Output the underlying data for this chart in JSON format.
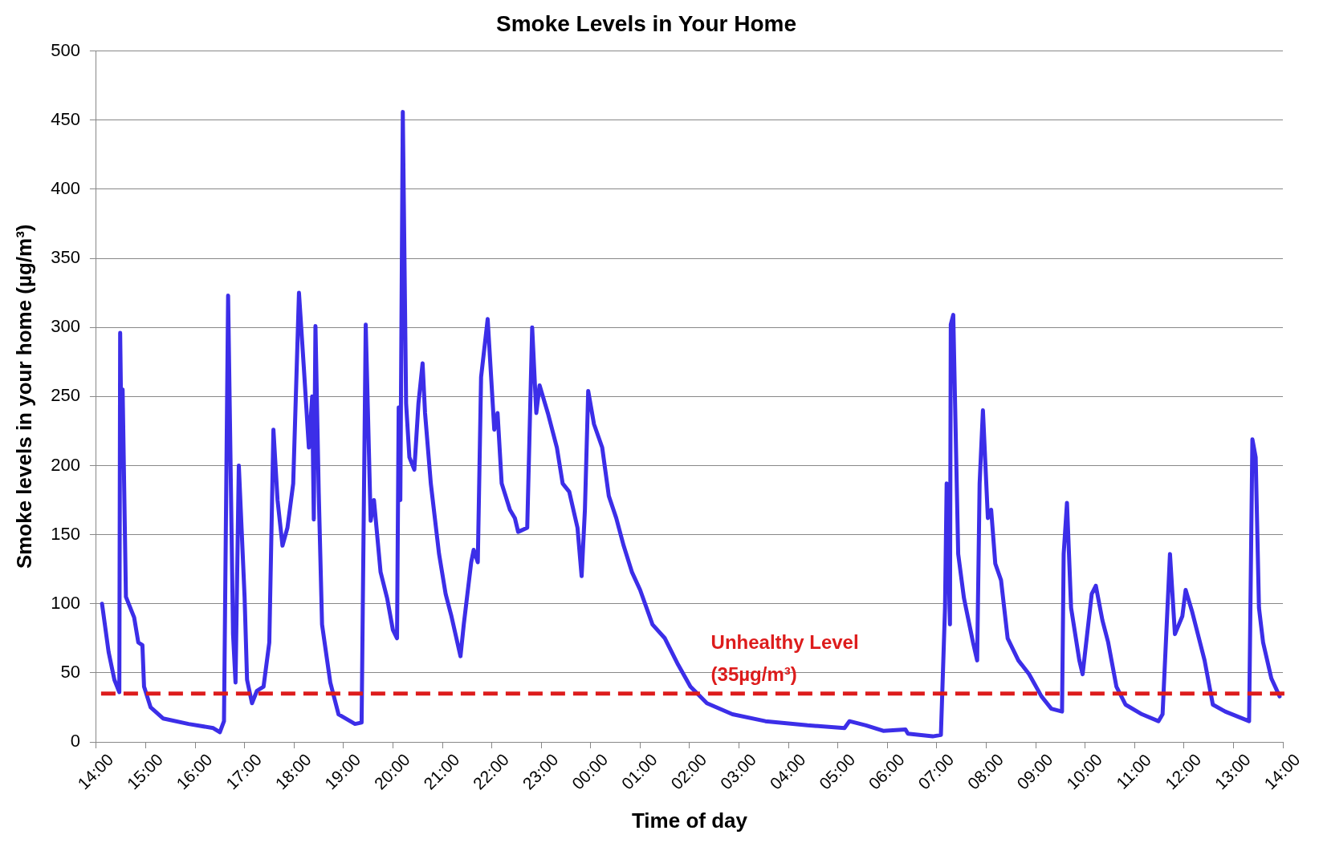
{
  "chart_data": {
    "type": "line",
    "title": "Smoke Levels in Your Home",
    "xlabel": "Time of day",
    "ylabel": "Smoke levels in your home (µg/m³)",
    "x": [
      "2000-01-01T14:07",
      "2000-01-01T14:15",
      "2000-01-01T14:22",
      "2000-01-01T14:28",
      "2000-01-01T14:29",
      "2000-01-01T14:30",
      "2000-01-01T14:32",
      "2000-01-01T14:36",
      "2000-01-01T14:46",
      "2000-01-01T14:51",
      "2000-01-01T14:56",
      "2000-01-01T14:58",
      "2000-01-01T15:06",
      "2000-01-01T15:21",
      "2000-01-01T15:52",
      "2000-01-01T16:22",
      "2000-01-01T16:30",
      "2000-01-01T16:35",
      "2000-01-01T16:40",
      "2000-01-01T16:46",
      "2000-01-01T16:49",
      "2000-01-01T16:53",
      "2000-01-01T17:00",
      "2000-01-01T17:03",
      "2000-01-01T17:09",
      "2000-01-01T17:15",
      "2000-01-01T17:23",
      "2000-01-01T17:30",
      "2000-01-01T17:35",
      "2000-01-01T17:40",
      "2000-01-01T17:46",
      "2000-01-01T17:52",
      "2000-01-01T17:59",
      "2000-01-01T18:06",
      "2000-01-01T18:12",
      "2000-01-01T18:18",
      "2000-01-01T18:22",
      "2000-01-01T18:24",
      "2000-01-01T18:26",
      "2000-01-01T18:30",
      "2000-01-01T18:34",
      "2000-01-01T18:44",
      "2000-01-01T18:54",
      "2000-01-01T19:14",
      "2000-01-01T19:22",
      "2000-01-01T19:27",
      "2000-01-01T19:33",
      "2000-01-01T19:37",
      "2000-01-01T19:45",
      "2000-01-01T19:53",
      "2000-01-01T20:00",
      "2000-01-01T20:05",
      "2000-01-01T20:07",
      "2000-01-01T20:09",
      "2000-01-01T20:12",
      "2000-01-01T20:16",
      "2000-01-01T20:20",
      "2000-01-01T20:26",
      "2000-01-01T20:31",
      "2000-01-01T20:36",
      "2000-01-01T20:39",
      "2000-01-01T20:46",
      "2000-01-01T20:56",
      "2000-01-01T21:04",
      "2000-01-01T21:11",
      "2000-01-01T21:22",
      "2000-01-01T21:26",
      "2000-01-01T21:35",
      "2000-01-01T21:38",
      "2000-01-01T21:43",
      "2000-01-01T21:47",
      "2000-01-01T21:55",
      "2000-01-01T22:03",
      "2000-01-01T22:07",
      "2000-01-01T22:12",
      "2000-01-01T22:22",
      "2000-01-01T22:28",
      "2000-01-01T22:32",
      "2000-01-01T22:43",
      "2000-01-01T22:49",
      "2000-01-01T22:54",
      "2000-01-01T22:58",
      "2000-01-01T23:08",
      "2000-01-01T23:19",
      "2000-01-01T23:26",
      "2000-01-01T23:34",
      "2000-01-01T23:44",
      "2000-01-01T23:49",
      "2000-01-01T23:53",
      "2000-01-01T23:57",
      "2000-01-02T00:04",
      "2000-01-02T00:14",
      "2000-01-02T00:22",
      "2000-01-02T00:31",
      "2000-01-02T00:40",
      "2000-01-02T00:50",
      "2000-01-02T01:00",
      "2000-01-02T01:15",
      "2000-01-02T01:30",
      "2000-01-02T01:46",
      "2000-01-02T02:01",
      "2000-01-02T02:21",
      "2000-01-02T02:52",
      "2000-01-02T03:32",
      "2000-01-02T04:23",
      "2000-01-02T05:08",
      "2000-01-02T05:14",
      "2000-01-02T05:34",
      "2000-01-02T05:55",
      "2000-01-02T06:22",
      "2000-01-02T06:25",
      "2000-01-02T06:55",
      "2000-01-02T07:05",
      "2000-01-02T07:10",
      "2000-01-02T07:12",
      "2000-01-02T07:16",
      "2000-01-02T07:17",
      "2000-01-02T07:20",
      "2000-01-02T07:22",
      "2000-01-02T07:26",
      "2000-01-02T07:33",
      "2000-01-02T07:44",
      "2000-01-02T07:49",
      "2000-01-02T07:52",
      "2000-01-02T07:56",
      "2000-01-02T08:02",
      "2000-01-02T08:06",
      "2000-01-02T08:11",
      "2000-01-02T08:18",
      "2000-01-02T08:26",
      "2000-01-02T08:39",
      "2000-01-02T08:52",
      "2000-01-02T09:07",
      "2000-01-02T09:19",
      "2000-01-02T09:32",
      "2000-01-02T09:34",
      "2000-01-02T09:38",
      "2000-01-02T09:43",
      "2000-01-02T09:53",
      "2000-01-02T09:57",
      "2000-01-02T10:08",
      "2000-01-02T10:13",
      "2000-01-02T10:21",
      "2000-01-02T10:28",
      "2000-01-02T10:38",
      "2000-01-02T10:49",
      "2000-01-02T11:09",
      "2000-01-02T11:29",
      "2000-01-02T11:34",
      "2000-01-02T11:43",
      "2000-01-02T11:49",
      "2000-01-02T11:58",
      "2000-01-02T12:02",
      "2000-01-02T12:10",
      "2000-01-02T12:25",
      "2000-01-02T12:35",
      "2000-01-02T12:50",
      "2000-01-02T13:19",
      "2000-01-02T13:23",
      "2000-01-02T13:27",
      "2000-01-02T13:31",
      "2000-01-02T13:36",
      "2000-01-02T13:46",
      "2000-01-02T13:56"
    ],
    "series": [
      {
        "color": "#3c2ee8",
        "values": [
          100,
          65,
          45,
          36,
          296,
          250,
          255,
          105,
          90,
          72,
          70,
          40,
          25,
          17,
          13,
          10,
          7,
          15,
          323,
          78,
          43,
          200,
          105,
          45,
          28,
          37,
          40,
          72,
          226,
          175,
          142,
          155,
          187,
          325,
          270,
          213,
          250,
          161,
          301,
          180,
          85,
          43,
          20,
          13,
          14,
          302,
          160,
          175,
          123,
          104,
          81,
          75,
          242,
          175,
          456,
          245,
          206,
          197,
          245,
          274,
          238,
          187,
          136,
          107,
          91,
          62,
          85,
          130,
          139,
          130,
          264,
          306,
          226,
          238,
          187,
          168,
          162,
          152,
          155,
          300,
          238,
          258,
          238,
          213,
          187,
          181,
          155,
          120,
          168,
          254,
          230,
          213,
          178,
          162,
          142,
          123,
          110,
          85,
          75,
          56,
          40,
          28,
          20,
          15,
          12,
          10,
          15,
          12,
          8,
          9,
          6,
          4,
          5,
          97,
          187,
          85,
          302,
          309,
          251,
          136,
          104,
          72,
          59,
          187,
          240,
          162,
          168,
          129,
          117,
          75,
          59,
          49,
          33,
          24,
          22,
          136,
          173,
          97,
          59,
          49,
          107,
          113,
          88,
          72,
          40,
          27,
          20,
          15,
          20,
          136,
          78,
          91,
          110,
          94,
          59,
          27,
          22,
          15,
          219,
          206,
          97,
          72,
          46,
          33
        ]
      }
    ],
    "xlim": [
      "2000-01-01T14:00",
      "2000-01-02T14:00"
    ],
    "xticks": [
      {
        "value": "2000-01-01T14:00",
        "label": "14:00"
      },
      {
        "value": "2000-01-01T15:00",
        "label": "15:00"
      },
      {
        "value": "2000-01-01T16:00",
        "label": "16:00"
      },
      {
        "value": "2000-01-01T17:00",
        "label": "17:00"
      },
      {
        "value": "2000-01-01T18:00",
        "label": "18:00"
      },
      {
        "value": "2000-01-01T19:00",
        "label": "19:00"
      },
      {
        "value": "2000-01-01T20:00",
        "label": "20:00"
      },
      {
        "value": "2000-01-01T21:00",
        "label": "21:00"
      },
      {
        "value": "2000-01-01T22:00",
        "label": "22:00"
      },
      {
        "value": "2000-01-01T23:00",
        "label": "23:00"
      },
      {
        "value": "2000-01-02T00:00",
        "label": "00:00"
      },
      {
        "value": "2000-01-02T01:00",
        "label": "01:00"
      },
      {
        "value": "2000-01-02T02:00",
        "label": "02:00"
      },
      {
        "value": "2000-01-02T03:00",
        "label": "03:00"
      },
      {
        "value": "2000-01-02T04:00",
        "label": "04:00"
      },
      {
        "value": "2000-01-02T05:00",
        "label": "05:00"
      },
      {
        "value": "2000-01-02T06:00",
        "label": "06:00"
      },
      {
        "value": "2000-01-02T07:00",
        "label": "07:00"
      },
      {
        "value": "2000-01-02T08:00",
        "label": "08:00"
      },
      {
        "value": "2000-01-02T09:00",
        "label": "09:00"
      },
      {
        "value": "2000-01-02T10:00",
        "label": "10:00"
      },
      {
        "value": "2000-01-02T11:00",
        "label": "11:00"
      },
      {
        "value": "2000-01-02T12:00",
        "label": "12:00"
      },
      {
        "value": "2000-01-02T13:00",
        "label": "13:00"
      },
      {
        "value": "2000-01-02T14:00",
        "label": "14:00"
      }
    ],
    "ylim": [
      0,
      500
    ],
    "yticks": [
      0,
      50,
      100,
      150,
      200,
      250,
      300,
      350,
      400,
      450,
      500
    ],
    "ref_lines": [
      {
        "axis": "y",
        "value": 35,
        "label": "Unhealthy Level (35µg/m³)",
        "color": "#dd1c1c",
        "line_style": "dashed"
      }
    ],
    "grid": "y",
    "legend": false,
    "marker": "none",
    "line_style": "solid"
  }
}
